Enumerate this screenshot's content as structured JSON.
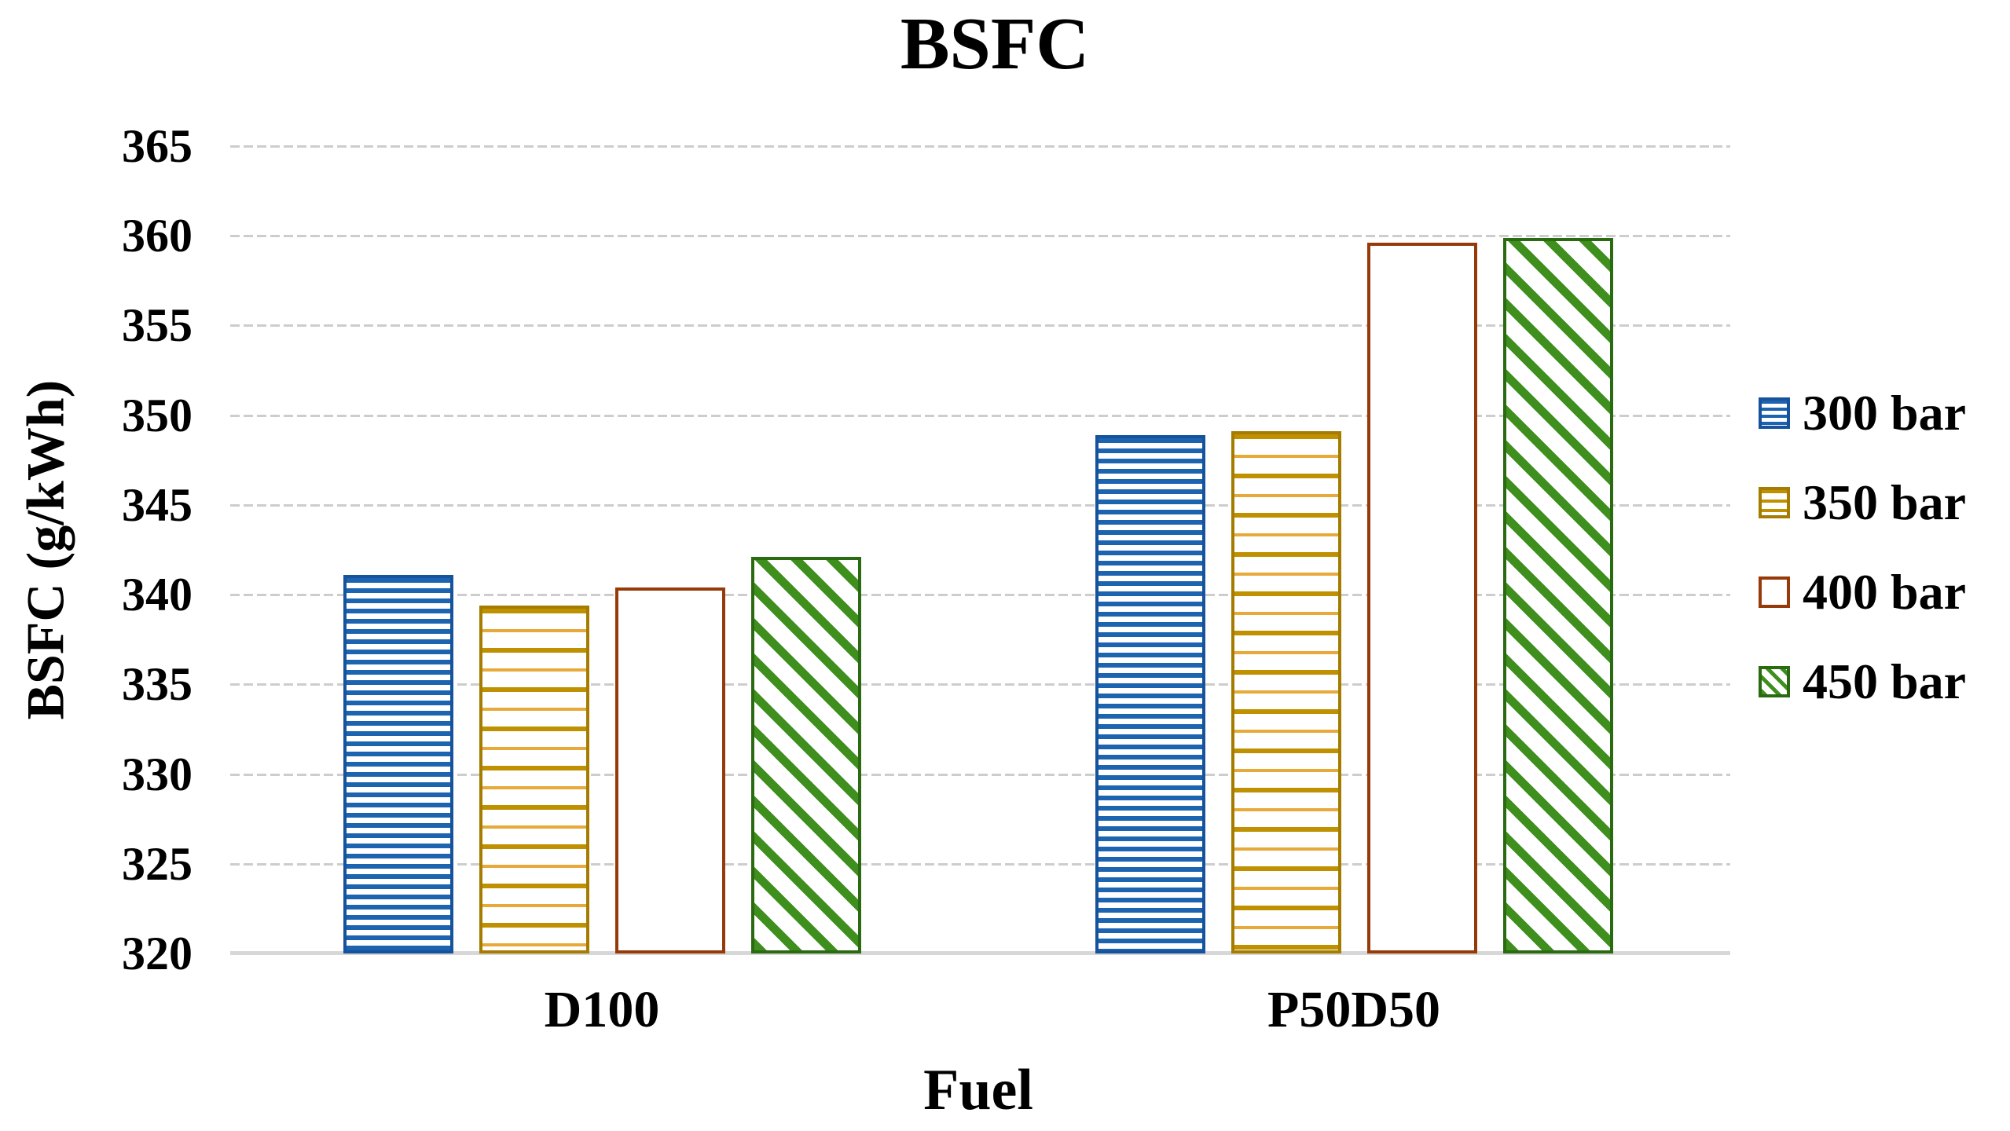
{
  "chart_data": {
    "type": "bar",
    "title": "BSFC",
    "xlabel": "Fuel",
    "ylabel": "BSFC (g/kWh)",
    "categories": [
      "D100",
      "P50D50"
    ],
    "series": [
      {
        "name": "300 bar",
        "values": [
          341.1,
          348.9
        ],
        "color": "#1C63B0",
        "border": "#16539C",
        "accent": "#6FA3D8",
        "pattern": "horizontal-dense"
      },
      {
        "name": "350 bar",
        "values": [
          339.4,
          349.1
        ],
        "color": "#BF9000",
        "border": "#A57C00",
        "accent": "#E8A93B",
        "pattern": "horizontal-dashed"
      },
      {
        "name": "400 bar",
        "values": [
          340.4,
          359.6
        ],
        "color": "#BC4A0F",
        "border": "#973A09",
        "accent": "#D98A5A",
        "pattern": "diagonal-dense"
      },
      {
        "name": "450 bar",
        "values": [
          342.1,
          359.9
        ],
        "color": "#3E8F1E",
        "border": "#2A6A10",
        "accent": "#86BE63",
        "pattern": "diagonal-wide"
      }
    ],
    "ylim": [
      320,
      365
    ],
    "ytick_step": 5,
    "ytick_labels": [
      "365",
      "360",
      "355",
      "350",
      "345",
      "340",
      "335",
      "330",
      "325",
      "320"
    ],
    "grid": true,
    "gridline_color": "#CDCDCD",
    "axis_line_color": "#D7D7D7",
    "legend_position": "right",
    "legend_labels": [
      "300 bar",
      "350 bar",
      "400 bar",
      "450 bar"
    ]
  }
}
